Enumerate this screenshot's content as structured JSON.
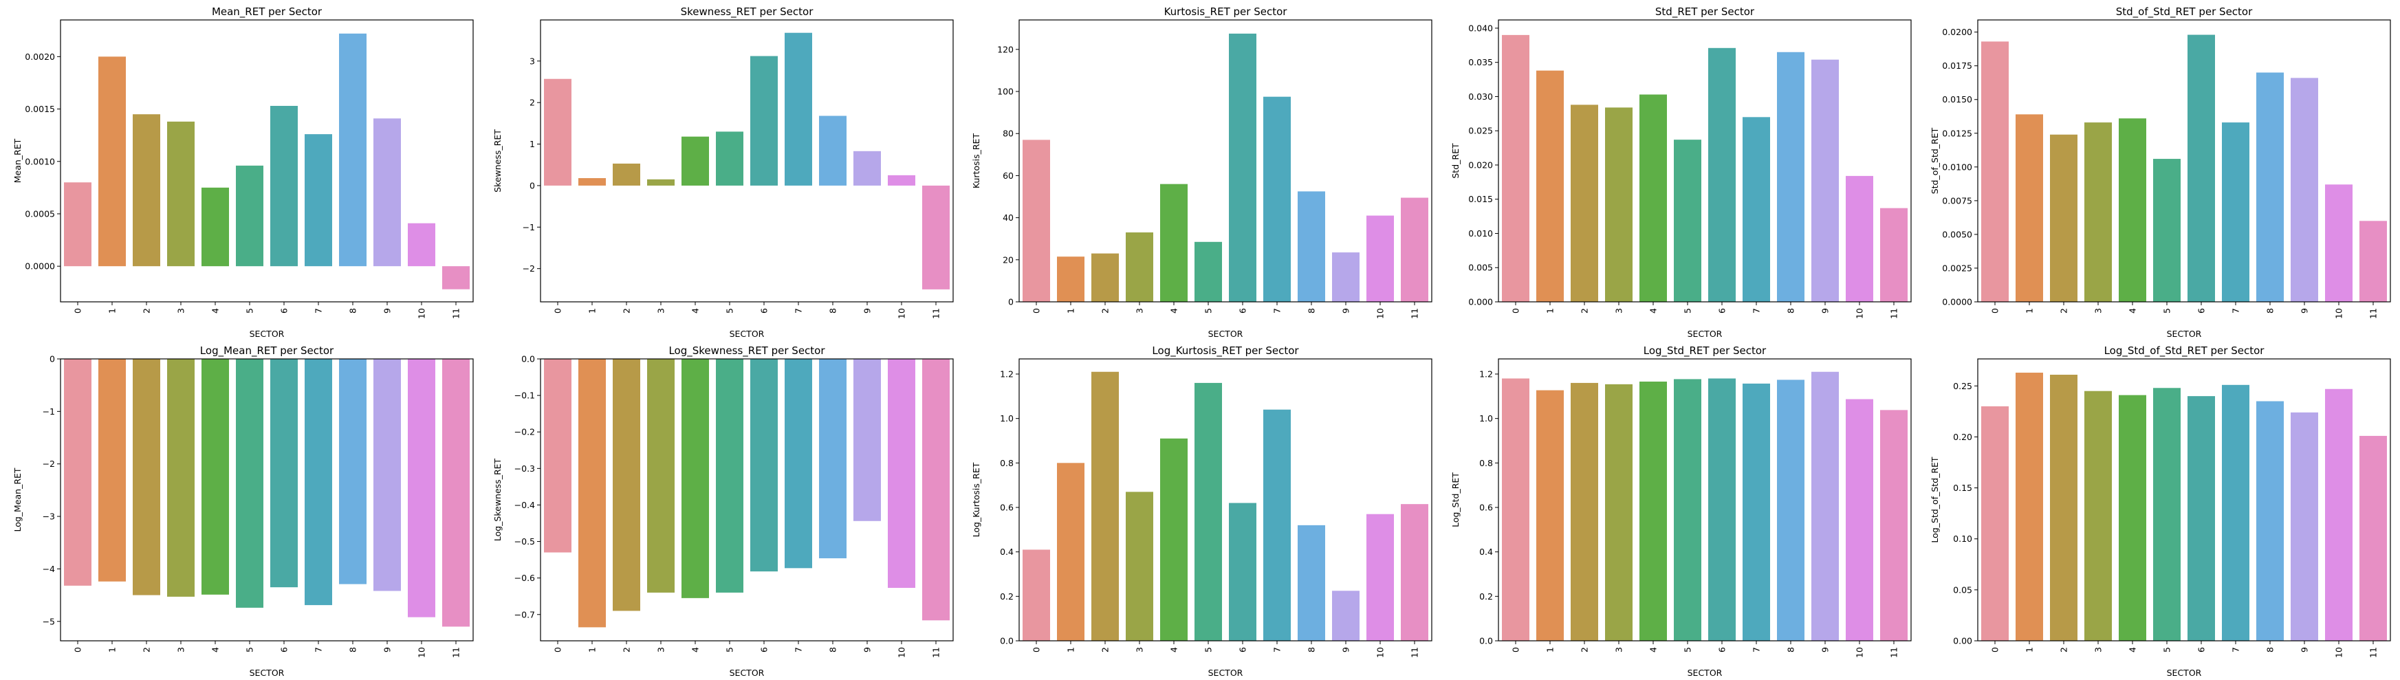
{
  "palette": [
    "#e8969f",
    "#e09054",
    "#b79a48",
    "#9aa547",
    "#5eaf47",
    "#4aae88",
    "#4aa9a4",
    "#4ea9bd",
    "#6dafe0",
    "#b6a7ea",
    "#de8ee6",
    "#e78fc4"
  ],
  "chart_data": [
    {
      "type": "bar",
      "title": "Mean_RET per Sector",
      "xlabel": "SECTOR",
      "ylabel": "Mean_RET",
      "categories": [
        "0",
        "1",
        "2",
        "3",
        "4",
        "5",
        "6",
        "7",
        "8",
        "9",
        "10",
        "11"
      ],
      "values": [
        0.0008,
        0.002,
        0.00145,
        0.00138,
        0.00075,
        0.00096,
        0.00153,
        0.00126,
        0.00222,
        0.00141,
        0.00041,
        -0.00022
      ],
      "ylim": [
        -0.00034,
        0.00235
      ],
      "yticks": [
        0,
        0.0005,
        0.001,
        0.0015,
        0.002
      ],
      "ytick_labels": [
        "0.0000",
        "0.0005",
        "0.0010",
        "0.0015",
        "0.0020"
      ]
    },
    {
      "type": "bar",
      "title": "Skewness_RET per Sector",
      "xlabel": "SECTOR",
      "ylabel": "Skewness_RET",
      "categories": [
        "0",
        "1",
        "2",
        "3",
        "4",
        "5",
        "6",
        "7",
        "8",
        "9",
        "10",
        "11"
      ],
      "values": [
        2.57,
        0.18,
        0.53,
        0.15,
        1.18,
        1.3,
        3.12,
        3.68,
        1.68,
        0.83,
        0.25,
        -2.5
      ],
      "ylim": [
        -2.8,
        3.99
      ],
      "yticks": [
        -2,
        -1,
        0,
        1,
        2,
        3
      ],
      "ytick_labels": [
        "−2",
        "−1",
        "0",
        "1",
        "2",
        "3"
      ]
    },
    {
      "type": "bar",
      "title": "Kurtosis_RET per Sector",
      "xlabel": "SECTOR",
      "ylabel": "Kurtosis_RET",
      "categories": [
        "0",
        "1",
        "2",
        "3",
        "4",
        "5",
        "6",
        "7",
        "8",
        "9",
        "10",
        "11"
      ],
      "values": [
        77,
        21.5,
        23,
        33,
        56,
        28.5,
        127.5,
        97.5,
        52.5,
        23.5,
        41,
        49.5
      ],
      "ylim": [
        0,
        134
      ],
      "yticks": [
        0,
        20,
        40,
        60,
        80,
        100,
        120
      ],
      "ytick_labels": [
        "0",
        "20",
        "40",
        "60",
        "80",
        "100",
        "120"
      ]
    },
    {
      "type": "bar",
      "title": "Std_RET per Sector",
      "xlabel": "SECTOR",
      "ylabel": "Std_RET",
      "categories": [
        "0",
        "1",
        "2",
        "3",
        "4",
        "5",
        "6",
        "7",
        "8",
        "9",
        "10",
        "11"
      ],
      "values": [
        0.039,
        0.0338,
        0.0288,
        0.0284,
        0.0303,
        0.0237,
        0.0371,
        0.027,
        0.0365,
        0.0354,
        0.0184,
        0.0137
      ],
      "ylim": [
        0,
        0.0412
      ],
      "yticks": [
        0,
        0.005,
        0.01,
        0.015,
        0.02,
        0.025,
        0.03,
        0.035,
        0.04
      ],
      "ytick_labels": [
        "0.000",
        "0.005",
        "0.010",
        "0.015",
        "0.020",
        "0.025",
        "0.030",
        "0.035",
        "0.040"
      ]
    },
    {
      "type": "bar",
      "title": "Std_of_Std_RET per Sector",
      "xlabel": "SECTOR",
      "ylabel": "Std_of_Std_RET",
      "categories": [
        "0",
        "1",
        "2",
        "3",
        "4",
        "5",
        "6",
        "7",
        "8",
        "9",
        "10",
        "11"
      ],
      "values": [
        0.0193,
        0.0139,
        0.0124,
        0.0133,
        0.0136,
        0.0106,
        0.0198,
        0.0133,
        0.017,
        0.0166,
        0.0087,
        0.006
      ],
      "ylim": [
        0,
        0.0209
      ],
      "yticks": [
        0,
        0.0025,
        0.005,
        0.0075,
        0.01,
        0.0125,
        0.015,
        0.0175,
        0.02
      ],
      "ytick_labels": [
        "0.0000",
        "0.0025",
        "0.0050",
        "0.0075",
        "0.0100",
        "0.0125",
        "0.0150",
        "0.0175",
        "0.0200"
      ]
    },
    {
      "type": "bar",
      "title": "Log_Mean_RET per Sector",
      "xlabel": "SECTOR",
      "ylabel": "Log_Mean_RET",
      "categories": [
        "0",
        "1",
        "2",
        "3",
        "4",
        "5",
        "6",
        "7",
        "8",
        "9",
        "10",
        "11"
      ],
      "values": [
        -4.32,
        -4.24,
        -4.5,
        -4.53,
        -4.49,
        -4.74,
        -4.35,
        -4.69,
        -4.29,
        -4.42,
        -4.92,
        -5.1
      ],
      "ylim": [
        -5.37,
        0
      ],
      "yticks": [
        -5,
        -4,
        -3,
        -2,
        -1,
        0
      ],
      "ytick_labels": [
        "−5",
        "−4",
        "−3",
        "−2",
        "−1",
        "0"
      ]
    },
    {
      "type": "bar",
      "title": "Log_Skewness_RET per Sector",
      "xlabel": "SECTOR",
      "ylabel": "Log_Skewness_RET",
      "categories": [
        "0",
        "1",
        "2",
        "3",
        "4",
        "5",
        "6",
        "7",
        "8",
        "9",
        "10",
        "11"
      ],
      "values": [
        -0.53,
        -0.735,
        -0.69,
        -0.64,
        -0.655,
        -0.64,
        -0.582,
        -0.573,
        -0.546,
        -0.444,
        -0.627,
        -0.716
      ],
      "ylim": [
        -0.772,
        0
      ],
      "yticks": [
        -0.7,
        -0.6,
        -0.5,
        -0.4,
        -0.3,
        -0.2,
        -0.1,
        0
      ],
      "ytick_labels": [
        "−0.7",
        "−0.6",
        "−0.5",
        "−0.4",
        "−0.3",
        "−0.2",
        "−0.1",
        "0.0"
      ]
    },
    {
      "type": "bar",
      "title": "Log_Kurtosis_RET per Sector",
      "xlabel": "SECTOR",
      "ylabel": "Log_Kurtosis_RET",
      "categories": [
        "0",
        "1",
        "2",
        "3",
        "4",
        "5",
        "6",
        "7",
        "8",
        "9",
        "10",
        "11"
      ],
      "values": [
        0.41,
        0.8,
        1.21,
        0.67,
        0.91,
        1.16,
        0.62,
        1.04,
        0.52,
        0.225,
        0.57,
        0.615
      ],
      "ylim": [
        0,
        1.268
      ],
      "yticks": [
        0,
        0.2,
        0.4,
        0.6,
        0.8,
        1.0,
        1.2
      ],
      "ytick_labels": [
        "0.0",
        "0.2",
        "0.4",
        "0.6",
        "0.8",
        "1.0",
        "1.2"
      ]
    },
    {
      "type": "bar",
      "title": "Log_Std_RET per Sector",
      "xlabel": "SECTOR",
      "ylabel": "Log_Std_RET",
      "categories": [
        "0",
        "1",
        "2",
        "3",
        "4",
        "5",
        "6",
        "7",
        "8",
        "9",
        "10",
        "11"
      ],
      "values": [
        1.18,
        1.127,
        1.16,
        1.154,
        1.166,
        1.177,
        1.18,
        1.157,
        1.174,
        1.21,
        1.087,
        1.038
      ],
      "ylim": [
        0,
        1.268
      ],
      "yticks": [
        0,
        0.2,
        0.4,
        0.6,
        0.8,
        1.0,
        1.2
      ],
      "ytick_labels": [
        "0.0",
        "0.2",
        "0.4",
        "0.6",
        "0.8",
        "1.0",
        "1.2"
      ]
    },
    {
      "type": "bar",
      "title": "Log_Std_of_Std_RET per Sector",
      "xlabel": "SECTOR",
      "ylabel": "Log_Std_of_Std_RET",
      "categories": [
        "0",
        "1",
        "2",
        "3",
        "4",
        "5",
        "6",
        "7",
        "8",
        "9",
        "10",
        "11"
      ],
      "values": [
        0.23,
        0.263,
        0.261,
        0.245,
        0.241,
        0.248,
        0.24,
        0.251,
        0.235,
        0.224,
        0.247,
        0.201
      ],
      "ylim": [
        0,
        0.2765
      ],
      "yticks": [
        0,
        0.05,
        0.1,
        0.15,
        0.2,
        0.25
      ],
      "ytick_labels": [
        "0.00",
        "0.05",
        "0.10",
        "0.15",
        "0.20",
        "0.25"
      ]
    }
  ]
}
